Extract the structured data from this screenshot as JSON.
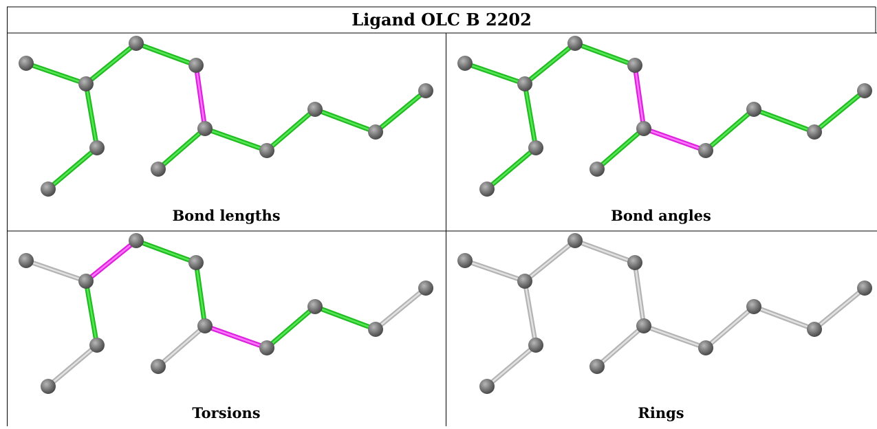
{
  "header": {
    "title": "Ligand OLC B 2202"
  },
  "panels": [
    {
      "caption": "Bond lengths"
    },
    {
      "caption": "Bond angles"
    },
    {
      "caption": "Torsions"
    },
    {
      "caption": "Rings"
    }
  ]
}
